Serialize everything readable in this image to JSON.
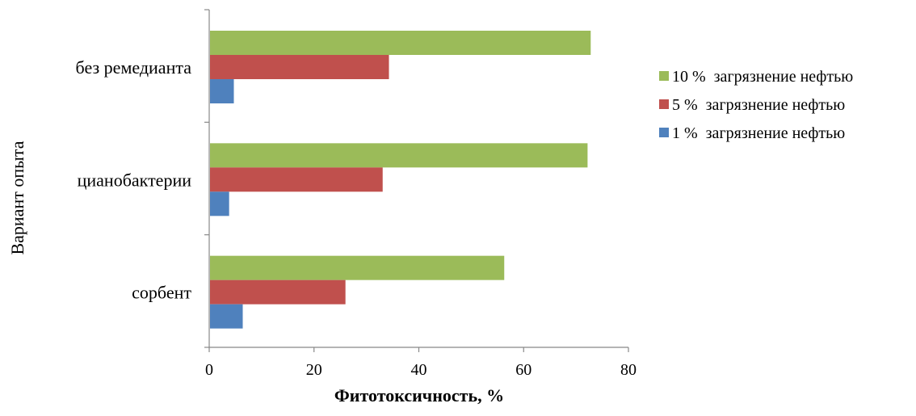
{
  "chart_data": {
    "type": "bar",
    "orientation": "horizontal",
    "categories": [
      "без ремедианта",
      "цианобактерии",
      "сорбент"
    ],
    "series": [
      {
        "name": "1 %  загрязнение нефтью",
        "color": "#4F81BD",
        "values": [
          4.7,
          3.8,
          6.4
        ]
      },
      {
        "name": "5 %  загрязнение нефтью",
        "color": "#C0504D",
        "values": [
          34.3,
          33.1,
          26.0
        ]
      },
      {
        "name": "10 %  загрязнение нефтью",
        "color": "#9BBB59",
        "values": [
          72.8,
          72.2,
          56.3
        ]
      }
    ],
    "xlabel": "Фитотоксичность, %",
    "ylabel": "Вариант опыта",
    "xlim": [
      0,
      80
    ],
    "xticks": [
      0,
      20,
      40,
      60,
      80
    ],
    "grid": false,
    "legend_position": "right",
    "legend_order": [
      "10 %  загрязнение нефтью",
      "5 %  загрязнение нефтью",
      "1 %  загрязнение нефтью"
    ]
  }
}
